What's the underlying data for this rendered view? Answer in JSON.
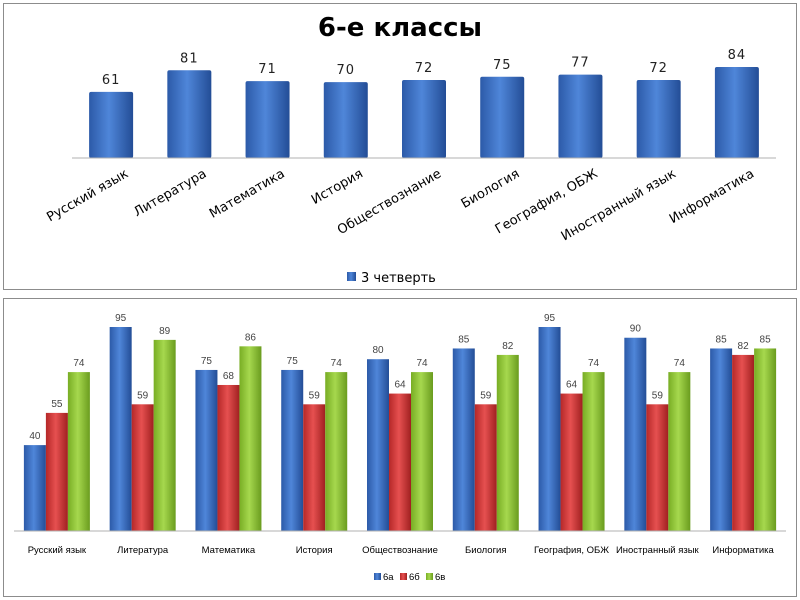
{
  "chart_data": [
    {
      "type": "bar",
      "title": "6-е классы",
      "categories": [
        "Русский язык",
        "Литература",
        "Математика",
        "История",
        "Обществознание",
        "Биология",
        "География, ОБЖ",
        "Иностранный язык",
        "Информатика"
      ],
      "series": [
        {
          "name": "3 четверть",
          "values": [
            61,
            81,
            71,
            70,
            72,
            75,
            77,
            72,
            84
          ]
        }
      ],
      "ylim": [
        0,
        90
      ],
      "grid": false,
      "legend": "bottom",
      "colors": [
        "#3a6fc4"
      ]
    },
    {
      "type": "bar",
      "categories": [
        "Русский язык",
        "Литература",
        "Математика",
        "История",
        "Обществознание",
        "Биология",
        "География, ОБЖ",
        "Иностранный язык",
        "Информатика"
      ],
      "series": [
        {
          "name": "6а",
          "values": [
            40,
            95,
            75,
            75,
            80,
            85,
            95,
            90,
            85
          ]
        },
        {
          "name": "6б",
          "values": [
            55,
            59,
            68,
            59,
            64,
            59,
            64,
            59,
            82
          ]
        },
        {
          "name": "6в",
          "values": [
            74,
            89,
            86,
            74,
            74,
            82,
            74,
            74,
            85
          ]
        }
      ],
      "ylim": [
        0,
        100
      ],
      "grid": false,
      "legend": "bottom",
      "colors": [
        "#3a6fc4",
        "#d63a3a",
        "#93c83a"
      ]
    }
  ]
}
